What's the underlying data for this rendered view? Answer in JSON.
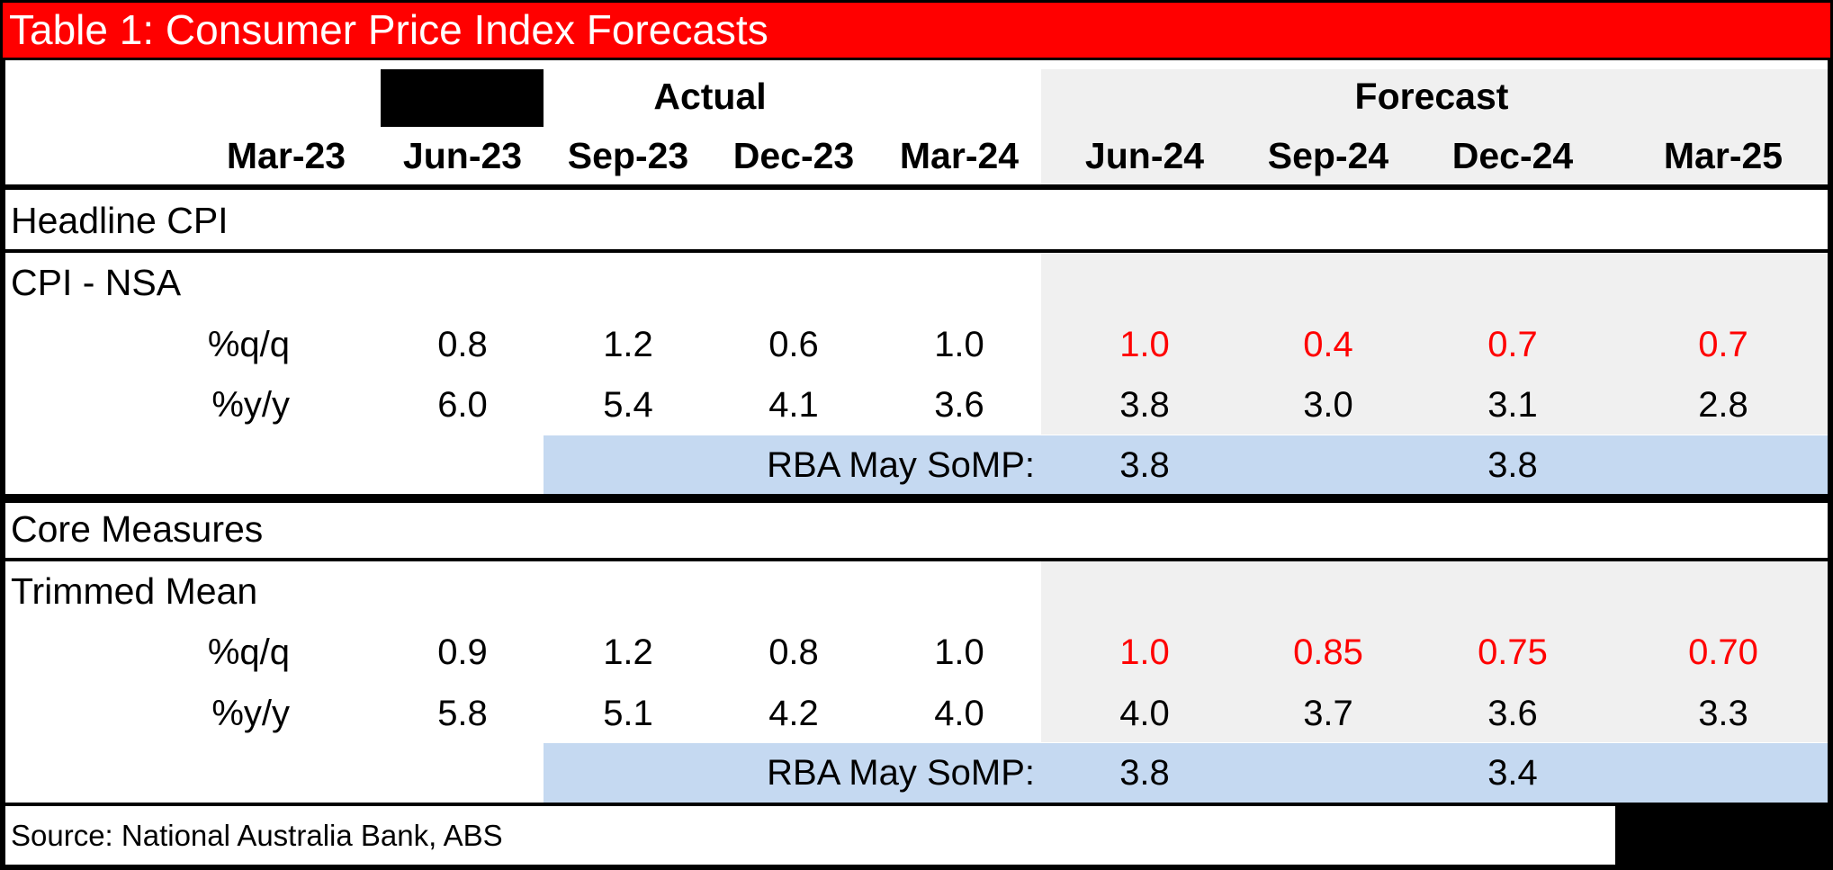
{
  "chart_data": {
    "type": "table",
    "title": "Table 1: Consumer Price Index Forecasts",
    "group_labels": {
      "actual": "Actual",
      "forecast": "Forecast"
    },
    "columns": [
      "Mar-23",
      "Jun-23",
      "Sep-23",
      "Dec-23",
      "Mar-24",
      "Jun-24",
      "Sep-24",
      "Dec-24",
      "Mar-25"
    ],
    "sections": [
      {
        "heading": "Headline CPI",
        "measure": "CPI - NSA",
        "rows": [
          {
            "label": "%q/q",
            "values": [
              "",
              "0.8",
              "1.2",
              "0.6",
              "1.0",
              "1.0",
              "0.4",
              "0.7",
              "0.7"
            ]
          },
          {
            "label": "%y/y",
            "values": [
              "",
              "6.0",
              "5.4",
              "4.1",
              "3.6",
              "3.8",
              "3.0",
              "3.1",
              "2.8"
            ]
          }
        ],
        "rba": {
          "label": "RBA May SoMP:",
          "jun24": "3.8",
          "dec24": "3.8"
        }
      },
      {
        "heading": "Core Measures",
        "measure": "Trimmed Mean",
        "rows": [
          {
            "label": "%q/q",
            "values": [
              "",
              "0.9",
              "1.2",
              "0.8",
              "1.0",
              "1.0",
              "0.85",
              "0.75",
              "0.70"
            ]
          },
          {
            "label": "%y/y",
            "values": [
              "",
              "5.8",
              "5.1",
              "4.2",
              "4.0",
              "4.0",
              "3.7",
              "3.6",
              "3.3"
            ]
          }
        ],
        "rba": {
          "label": "RBA May SoMP:",
          "jun24": "3.8",
          "dec24": "3.4"
        }
      }
    ],
    "source": "Source: National Australia Bank, ABS",
    "colors": {
      "title_background": "#ff0000",
      "forecast_shade": "#f0f0f0",
      "rba_shade": "#c5d9f1",
      "quarterly_forecast_text": "#ff0000"
    }
  }
}
